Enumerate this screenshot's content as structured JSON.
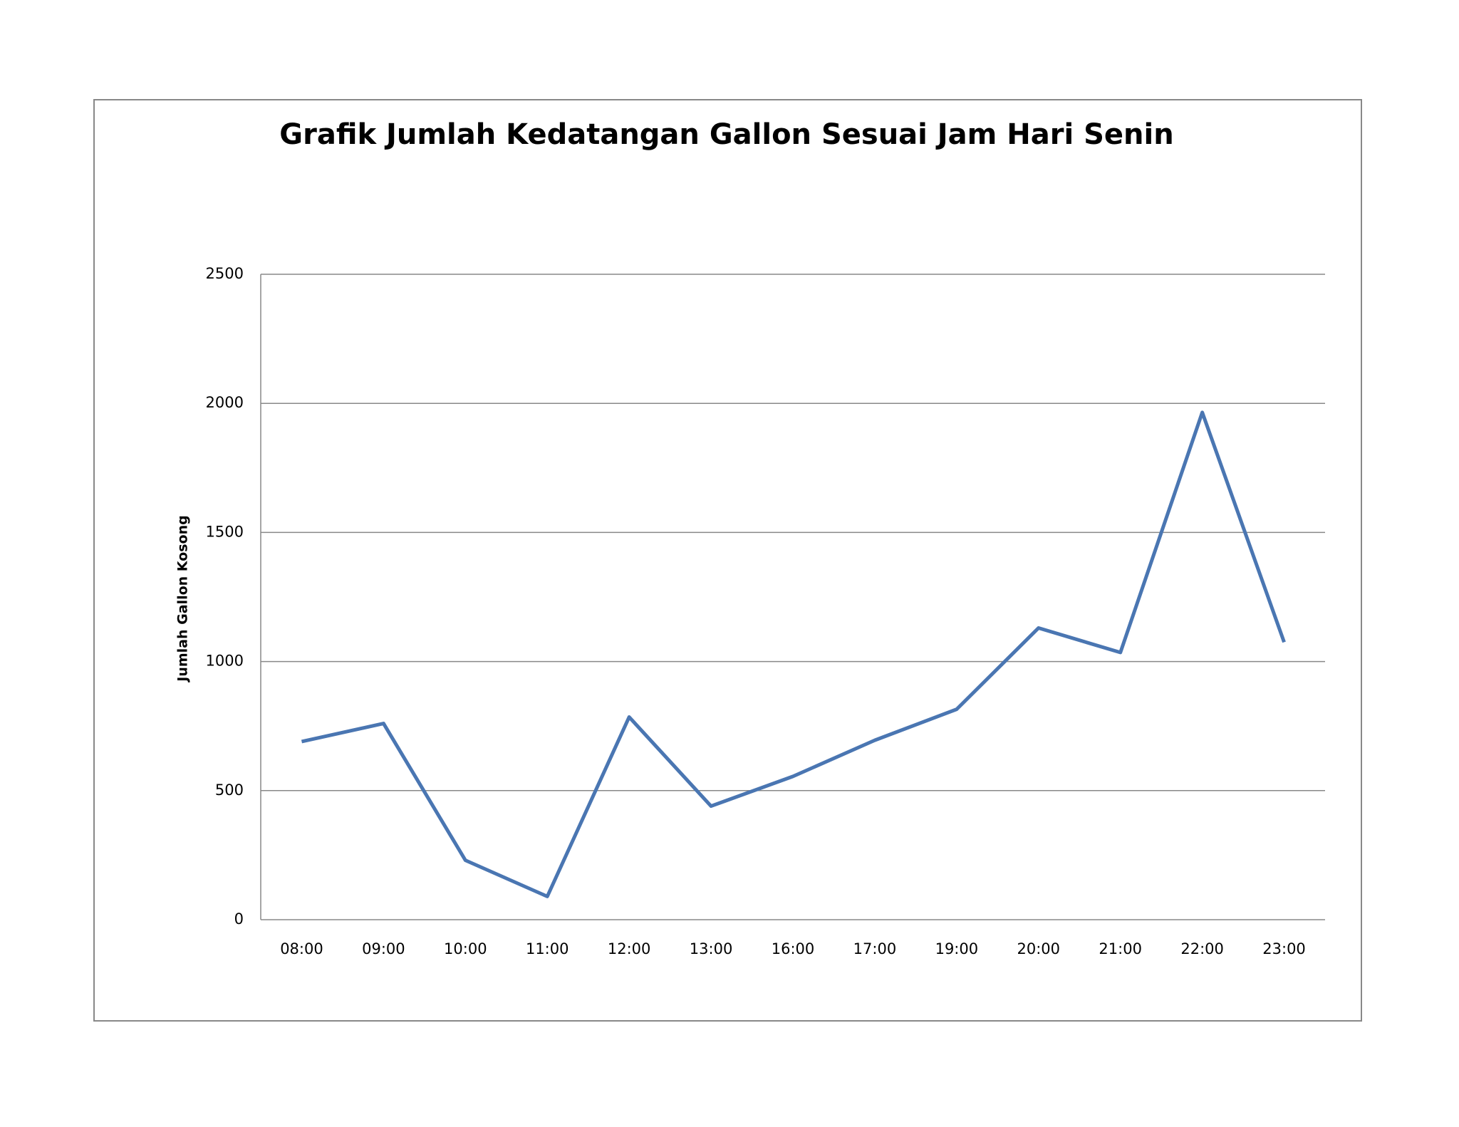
{
  "chart_data": {
    "type": "line",
    "title": "Grafik Jumlah Kedatangan Gallon Sesuai Jam Hari Senin",
    "y_label": "Jumlah Gallon Kosong",
    "categories": [
      "08:00",
      "09:00",
      "10:00",
      "11:00",
      "12:00",
      "13:00",
      "16:00",
      "17:00",
      "19:00",
      "20:00",
      "21:00",
      "22:00",
      "23:00"
    ],
    "values": [
      690,
      760,
      230,
      90,
      785,
      440,
      555,
      695,
      815,
      1130,
      1035,
      1965,
      1075
    ],
    "color": "#4a76b2",
    "ylim": [
      0,
      2500
    ],
    "yticks": [
      0,
      500,
      1000,
      1500,
      2000,
      2500
    ],
    "grid": true
  }
}
